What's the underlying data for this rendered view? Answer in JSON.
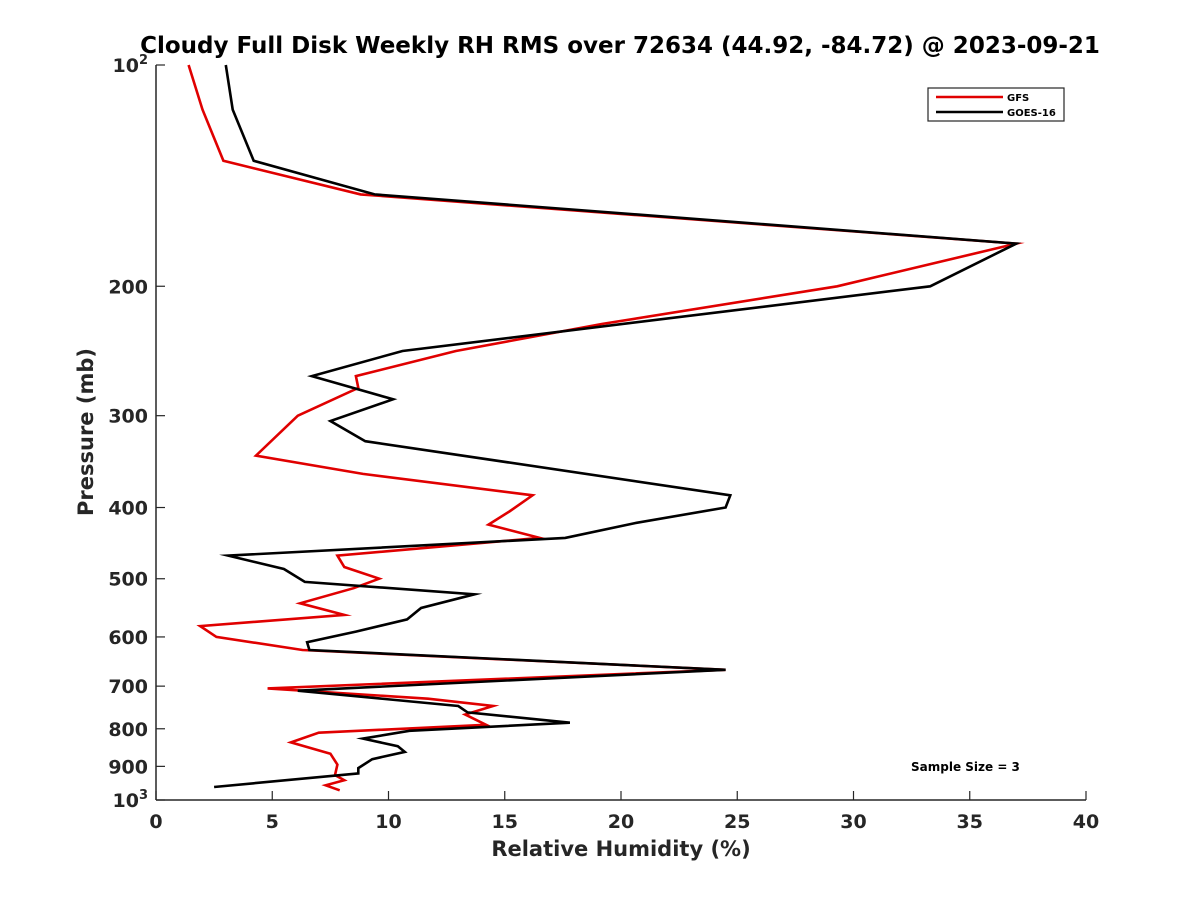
{
  "chart_data": {
    "type": "line",
    "title": "Cloudy Full Disk Weekly RH RMS over 72634 (44.92, -84.72) @ 2023-09-21",
    "xlabel": "Relative Humidity (%)",
    "ylabel": "Pressure (mb)",
    "xlim": [
      0,
      40
    ],
    "ylim": [
      100,
      1000
    ],
    "yscale": "log",
    "y_reversed": true,
    "grid": false,
    "legend_position": "top-right",
    "x_ticks": [
      "0",
      "5",
      "10",
      "15",
      "20",
      "25",
      "30",
      "35",
      "40"
    ],
    "y_ticks": [
      {
        "value": 100,
        "base": "10",
        "exp": "2"
      },
      {
        "value": 200,
        "label": "200"
      },
      {
        "value": 300,
        "label": "300"
      },
      {
        "value": 400,
        "label": "400"
      },
      {
        "value": 500,
        "label": "500"
      },
      {
        "value": 600,
        "label": "600"
      },
      {
        "value": 700,
        "label": "700"
      },
      {
        "value": 800,
        "label": "800"
      },
      {
        "value": 900,
        "label": "900"
      },
      {
        "value": 1000,
        "base": "10",
        "exp": "3"
      }
    ],
    "annotation": "Sample Size = 3",
    "series": [
      {
        "name": "GFS",
        "color": "#e00000",
        "points": [
          [
            1.4,
            100
          ],
          [
            2.0,
            115
          ],
          [
            2.9,
            135
          ],
          [
            8.8,
            150
          ],
          [
            37.0,
            175
          ],
          [
            29.3,
            200
          ],
          [
            19.2,
            225
          ],
          [
            12.9,
            245
          ],
          [
            8.6,
            265
          ],
          [
            8.7,
            275
          ],
          [
            6.1,
            300
          ],
          [
            4.3,
            340
          ],
          [
            8.9,
            360
          ],
          [
            16.2,
            385
          ],
          [
            15.2,
            405
          ],
          [
            14.3,
            422
          ],
          [
            16.5,
            440
          ],
          [
            7.8,
            465
          ],
          [
            8.1,
            482
          ],
          [
            9.6,
            500
          ],
          [
            8.5,
            515
          ],
          [
            6.2,
            540
          ],
          [
            8.1,
            560
          ],
          [
            1.9,
            580
          ],
          [
            2.6,
            600
          ],
          [
            6.3,
            625
          ],
          [
            24.5,
            665
          ],
          [
            4.8,
            705
          ],
          [
            11.7,
            728
          ],
          [
            14.5,
            745
          ],
          [
            13.3,
            765
          ],
          [
            14.2,
            790
          ],
          [
            7.0,
            810
          ],
          [
            5.8,
            835
          ],
          [
            7.5,
            865
          ],
          [
            7.8,
            895
          ],
          [
            7.7,
            925
          ],
          [
            8.1,
            940
          ],
          [
            7.3,
            955
          ],
          [
            7.9,
            970
          ]
        ]
      },
      {
        "name": "GOES-16",
        "color": "#000000",
        "points": [
          [
            3.0,
            100
          ],
          [
            3.3,
            115
          ],
          [
            4.2,
            135
          ],
          [
            9.4,
            150
          ],
          [
            37.0,
            175
          ],
          [
            33.3,
            200
          ],
          [
            10.6,
            245
          ],
          [
            6.7,
            265
          ],
          [
            10.2,
            285
          ],
          [
            7.5,
            305
          ],
          [
            9.0,
            325
          ],
          [
            24.7,
            385
          ],
          [
            24.5,
            400
          ],
          [
            20.6,
            420
          ],
          [
            17.6,
            440
          ],
          [
            3.1,
            465
          ],
          [
            5.5,
            485
          ],
          [
            6.4,
            505
          ],
          [
            13.7,
            525
          ],
          [
            11.4,
            548
          ],
          [
            10.8,
            568
          ],
          [
            8.6,
            590
          ],
          [
            6.5,
            610
          ],
          [
            6.6,
            625
          ],
          [
            24.5,
            665
          ],
          [
            6.1,
            710
          ],
          [
            13.0,
            745
          ],
          [
            13.4,
            760
          ],
          [
            17.8,
            785
          ],
          [
            10.9,
            805
          ],
          [
            8.9,
            825
          ],
          [
            10.4,
            845
          ],
          [
            10.7,
            860
          ],
          [
            9.3,
            880
          ],
          [
            8.7,
            905
          ],
          [
            8.7,
            920
          ],
          [
            2.5,
            960
          ]
        ]
      }
    ]
  }
}
